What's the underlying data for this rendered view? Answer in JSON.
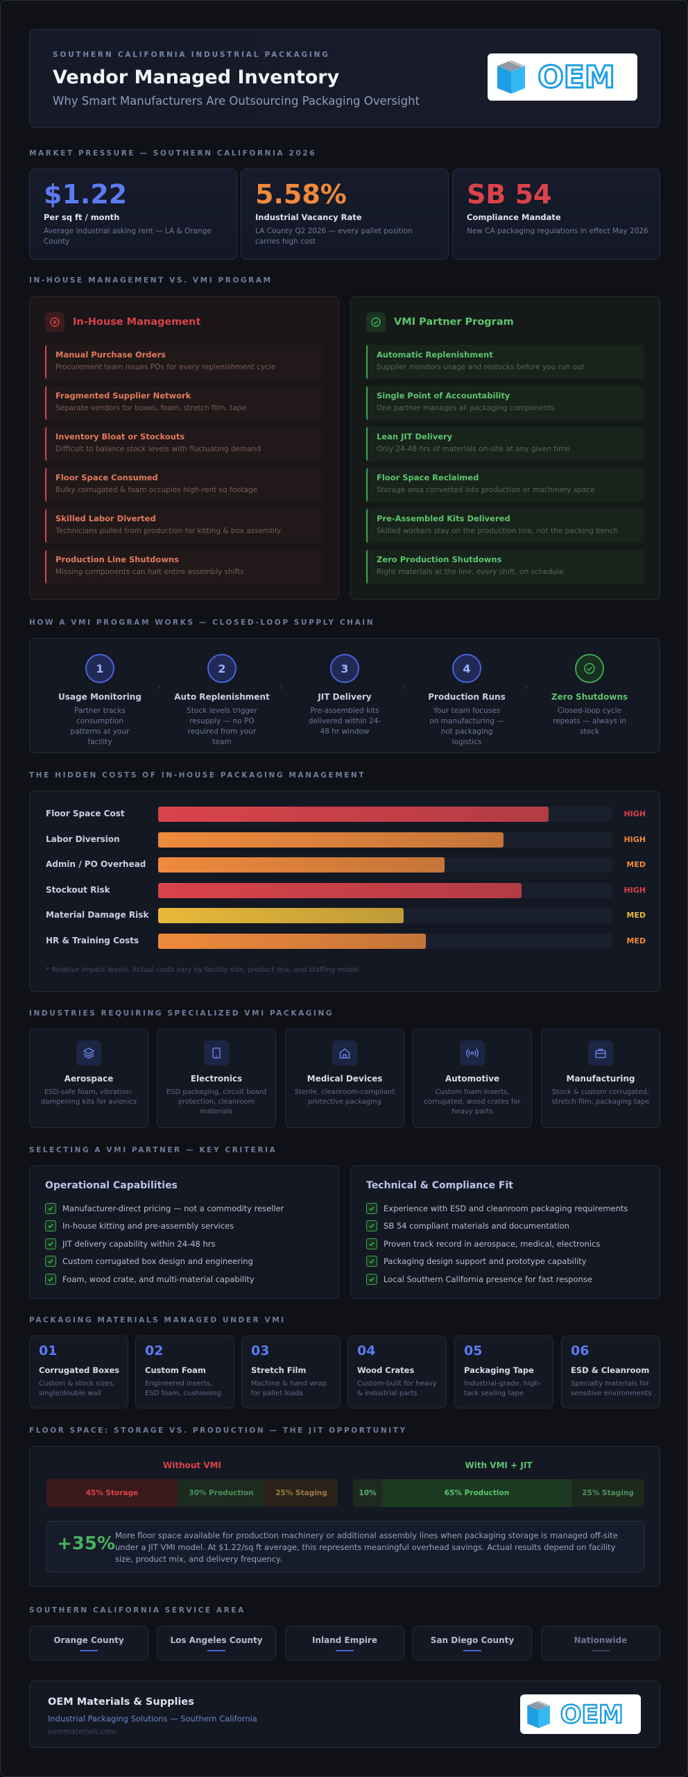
{
  "header": {
    "eyebrow": "SOUTHERN CALIFORNIA INDUSTRIAL PACKAGING",
    "title": "Vendor Managed Inventory",
    "subtitle": "Why Smart Manufacturers Are Outsourcing Packaging Oversight",
    "logo_text": "OEM"
  },
  "sections": {
    "market": "MARKET PRESSURE — SOUTHERN CALIFORNIA 2026",
    "compare": "IN-HOUSE MANAGEMENT VS. VMI PROGRAM",
    "process": "HOW A VMI PROGRAM WORKS — CLOSED-LOOP SUPPLY CHAIN",
    "costs": "THE HIDDEN COSTS OF IN-HOUSE PACKAGING MANAGEMENT",
    "industries": "INDUSTRIES REQUIRING SPECIALIZED VMI PACKAGING",
    "criteria": "SELECTING A VMI PARTNER — KEY CRITERIA",
    "materials": "PACKAGING MATERIALS MANAGED UNDER VMI",
    "floor": "FLOOR SPACE: STORAGE VS. PRODUCTION — THE JIT OPPORTUNITY",
    "service": "SOUTHERN CALIFORNIA SERVICE AREA"
  },
  "stats": [
    {
      "value": "$1.22",
      "label": "Per sq ft / month",
      "desc": "Average industrial asking rent — LA & Orange County",
      "color": "#5b7bf0"
    },
    {
      "value": "5.58%",
      "label": "Industrial Vacancy Rate",
      "desc": "LA County Q2 2026 — every pallet position carries high cost",
      "color": "#ef8a3c"
    },
    {
      "value": "SB 54",
      "label": "Compliance Mandate",
      "desc": "New CA packaging regulations in effect May 2026",
      "color": "#d9434a"
    }
  ],
  "inhouse": {
    "title": "In-House Management",
    "items": [
      {
        "t": "Manual Purchase Orders",
        "d": "Procurement team issues POs for every replenishment cycle"
      },
      {
        "t": "Fragmented Supplier Network",
        "d": "Separate vendors for boxes, foam, stretch film, tape"
      },
      {
        "t": "Inventory Bloat or Stockouts",
        "d": "Difficult to balance stock levels with fluctuating demand"
      },
      {
        "t": "Floor Space Consumed",
        "d": "Bulky corrugated & foam occupies high-rent sq footage"
      },
      {
        "t": "Skilled Labor Diverted",
        "d": "Technicians pulled from production for kitting & box assembly"
      },
      {
        "t": "Production Line Shutdowns",
        "d": "Missing components can halt entire assembly shifts"
      }
    ]
  },
  "vmi": {
    "title": "VMI Partner Program",
    "items": [
      {
        "t": "Automatic Replenishment",
        "d": "Supplier monitors usage and restocks before you run out"
      },
      {
        "t": "Single Point of Accountability",
        "d": "One partner manages all packaging components"
      },
      {
        "t": "Lean JIT Delivery",
        "d": "Only 24-48 hrs of materials on-site at any given time"
      },
      {
        "t": "Floor Space Reclaimed",
        "d": "Storage area converted into production or machinery space"
      },
      {
        "t": "Pre-Assembled Kits Delivered",
        "d": "Skilled workers stay on the production line, not the packing bench"
      },
      {
        "t": "Zero Production Shutdowns",
        "d": "Right materials at the line, every shift, on schedule"
      }
    ]
  },
  "process": [
    {
      "n": "1",
      "name": "Usage Monitoring",
      "desc": "Partner tracks consumption patterns at your facility"
    },
    {
      "n": "2",
      "name": "Auto Replenishment",
      "desc": "Stock levels trigger resupply — no PO required from your team"
    },
    {
      "n": "3",
      "name": "JIT Delivery",
      "desc": "Pre-assembled kits delivered within 24-48 hr window"
    },
    {
      "n": "4",
      "name": "Production Runs",
      "desc": "Your team focuses on manufacturing — not packaging logistics"
    },
    {
      "n": "",
      "name": "Zero Shutdowns",
      "desc": "Closed-loop cycle repeats — always in stock"
    }
  ],
  "costs": {
    "rows": [
      {
        "label": "Floor Space Cost",
        "level": "HIGH",
        "fraction": 0.86,
        "color": "#d9434a"
      },
      {
        "label": "Labor Diversion",
        "level": "HIGH",
        "fraction": 0.76,
        "color": "#ef8a3c"
      },
      {
        "label": "Admin / PO Overhead",
        "level": "MED",
        "fraction": 0.63,
        "color": "#ef8a3c"
      },
      {
        "label": "Stockout Risk",
        "level": "HIGH",
        "fraction": 0.8,
        "color": "#d9434a"
      },
      {
        "label": "Material Damage Risk",
        "level": "MED",
        "fraction": 0.54,
        "color": "#e8b93a"
      },
      {
        "label": "HR & Training Costs",
        "level": "MED",
        "fraction": 0.59,
        "color": "#ef8a3c"
      }
    ],
    "note": "* Relative impact levels. Actual costs vary by facility size, product mix, and staffing model."
  },
  "industries": [
    {
      "icon": "layers-icon",
      "name": "Aerospace",
      "desc": "ESD-safe foam, vibration-dampening kits for avionics"
    },
    {
      "icon": "tablet-icon",
      "name": "Electronics",
      "desc": "ESD packaging, circuit board protection, cleanroom materials"
    },
    {
      "icon": "home-icon",
      "name": "Medical Devices",
      "desc": "Sterile, cleanroom-compliant protective packaging"
    },
    {
      "icon": "radio-icon",
      "name": "Automotive",
      "desc": "Custom foam inserts, corrugated, wood crates for heavy parts"
    },
    {
      "icon": "briefcase-icon",
      "name": "Manufacturing",
      "desc": "Stock & custom corrugated, stretch film, packaging tape"
    }
  ],
  "criteria": [
    {
      "title": "Operational Capabilities",
      "items": [
        "Manufacturer-direct pricing — not a commodity reseller",
        "In-house kitting and pre-assembly services",
        "JIT delivery capability within 24-48 hrs",
        "Custom corrugated box design and engineering",
        "Foam, wood crate, and multi-material capability"
      ]
    },
    {
      "title": "Technical & Compliance Fit",
      "items": [
        "Experience with ESD and cleanroom packaging requirements",
        "SB 54 compliant materials and documentation",
        "Proven track record in aerospace, medical, electronics",
        "Packaging design support and prototype capability",
        "Local Southern California presence for fast response"
      ]
    }
  ],
  "materials": [
    {
      "n": "01",
      "t": "Corrugated Boxes",
      "d": "Custom & stock sizes, single/double wall"
    },
    {
      "n": "02",
      "t": "Custom Foam",
      "d": "Engineered inserts, ESD foam, cushioning"
    },
    {
      "n": "03",
      "t": "Stretch Film",
      "d": "Machine & hand wrap for pallet loads"
    },
    {
      "n": "04",
      "t": "Wood Crates",
      "d": "Custom-built for heavy & industrial parts"
    },
    {
      "n": "05",
      "t": "Packaging Tape",
      "d": "Industrial-grade, high-tack sealing tape"
    },
    {
      "n": "06",
      "t": "ESD & Cleanroom",
      "d": "Specialty materials for sensitive environments"
    }
  ],
  "floor": {
    "without": {
      "title": "Without VMI",
      "segments": [
        {
          "label": "45% Storage",
          "pct": 45,
          "bg": "#3a1a1b",
          "color": "#d9434a"
        },
        {
          "label": "30% Production",
          "pct": 30,
          "bg": "#1c2a1f",
          "color": "#4e8f5c"
        },
        {
          "label": "25% Staging",
          "pct": 25,
          "bg": "#2a2219",
          "color": "#9c7a45"
        }
      ]
    },
    "with": {
      "title": "With VMI + JIT",
      "segments": [
        {
          "label": "10%",
          "pct": 10,
          "bg": "#1e2a20",
          "color": "#5fae6d"
        },
        {
          "label": "65% Production",
          "pct": 65,
          "bg": "#1b3a22",
          "color": "#5ec270"
        },
        {
          "label": "25% Staging",
          "pct": 25,
          "bg": "#1c2a1e",
          "color": "#4e8f5c"
        }
      ]
    },
    "callout_value": "+35%",
    "callout_text": "More floor space available for production machinery or additional assembly lines when packaging storage is managed off-site under a JIT VMI model. At $1.22/sq ft average, this represents meaningful overhead savings. Actual results depend on facility size, product mix, and delivery frequency."
  },
  "service": [
    "Orange County",
    "Los Angeles County",
    "Inland Empire",
    "San Diego County",
    "Nationwide"
  ],
  "footer": {
    "name": "OEM Materials & Supplies",
    "sub": "Industrial Packaging Solutions — Southern California",
    "web": "oemmaterials.com"
  }
}
